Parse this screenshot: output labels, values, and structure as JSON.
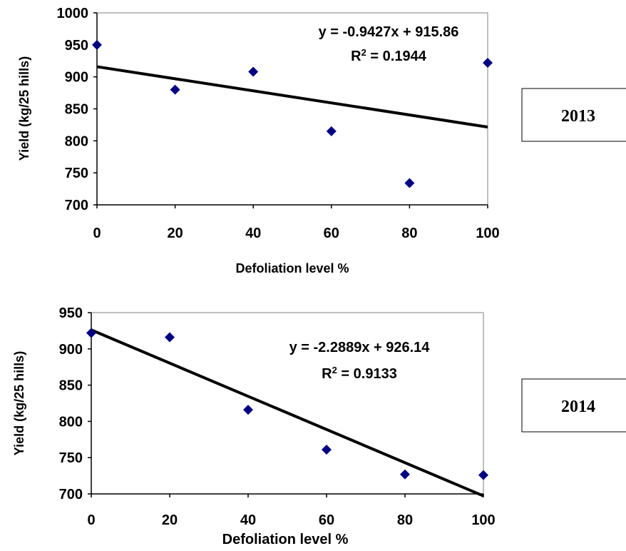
{
  "chart_data": [
    {
      "type": "scatter",
      "year_label": "2013",
      "xlabel": "Defoliation level %",
      "ylabel": "Yield (kg/25 hills)",
      "xlim": [
        0,
        100
      ],
      "ylim": [
        700,
        1000
      ],
      "x_ticks": [
        "0",
        "20",
        "40",
        "60",
        "80",
        "100"
      ],
      "y_ticks": [
        "700",
        "750",
        "800",
        "850",
        "900",
        "950",
        "1000"
      ],
      "points": [
        {
          "x": 0,
          "y": 950
        },
        {
          "x": 20,
          "y": 880
        },
        {
          "x": 40,
          "y": 908
        },
        {
          "x": 60,
          "y": 815
        },
        {
          "x": 80,
          "y": 734
        },
        {
          "x": 100,
          "y": 922
        }
      ],
      "trendline": {
        "slope": -0.9427,
        "intercept": 915.86
      },
      "equation": "y = -0.9427x + 915.86",
      "r2_prefix": "R",
      "r2_value": " = 0.1944",
      "marker_color": "#000080",
      "line_color": "#000000"
    },
    {
      "type": "scatter",
      "year_label": "2014",
      "xlabel": "Defoliation level %",
      "ylabel": "Yield (kg/25 hills)",
      "xlim": [
        0,
        100
      ],
      "ylim": [
        700,
        950
      ],
      "x_ticks": [
        "0",
        "20",
        "40",
        "60",
        "80",
        "100"
      ],
      "y_ticks": [
        "700",
        "750",
        "800",
        "850",
        "900",
        "950"
      ],
      "points": [
        {
          "x": 0,
          "y": 922
        },
        {
          "x": 20,
          "y": 916
        },
        {
          "x": 40,
          "y": 816
        },
        {
          "x": 60,
          "y": 761
        },
        {
          "x": 80,
          "y": 727
        },
        {
          "x": 100,
          "y": 726
        }
      ],
      "trendline": {
        "slope": -2.2889,
        "intercept": 926.14
      },
      "equation": "y = -2.2889x + 926.14",
      "r2_prefix": "R",
      "r2_value": " = 0.9133",
      "marker_color": "#000080",
      "line_color": "#000000"
    }
  ]
}
